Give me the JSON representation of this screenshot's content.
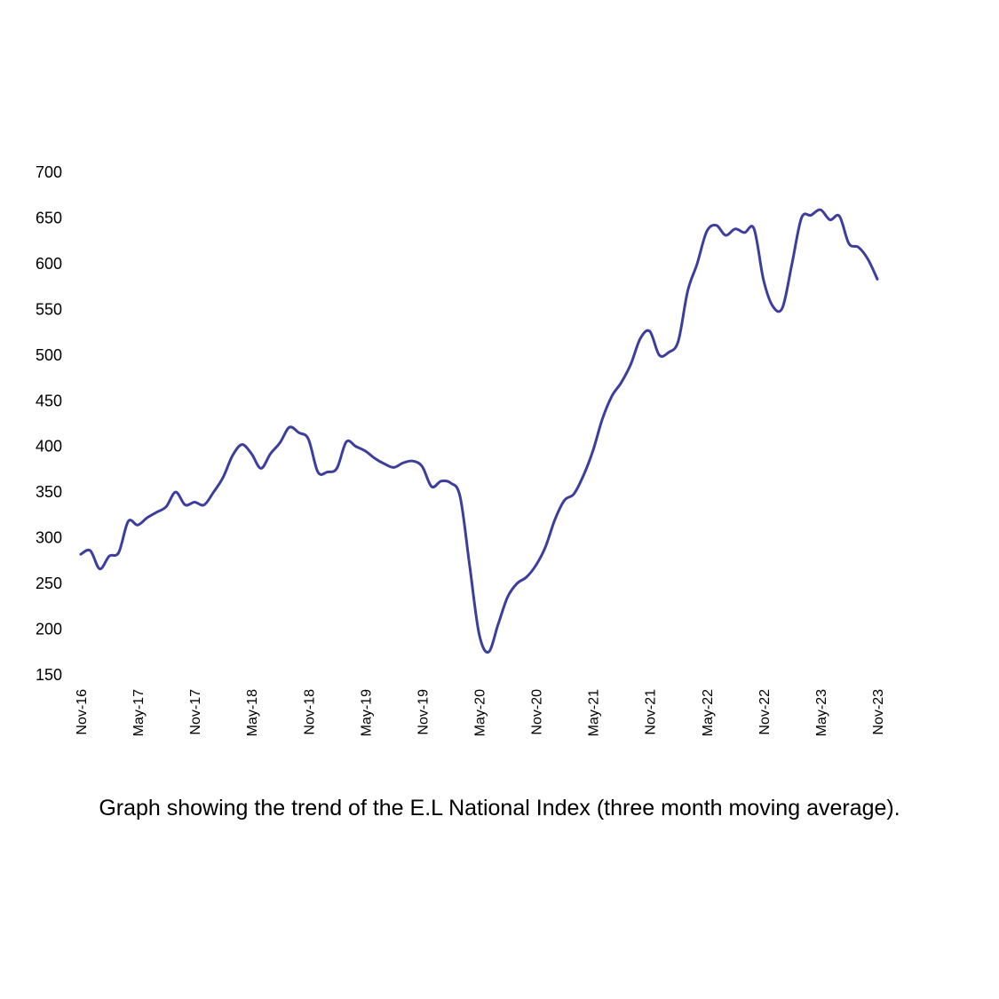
{
  "caption": "Graph showing the trend of the E.L National Index (three month moving average).",
  "colors": {
    "line": "#3d3d9e",
    "text": "#000000",
    "background": "#ffffff"
  },
  "chart_data": {
    "type": "line",
    "title": "",
    "xlabel": "",
    "ylabel": "",
    "ylim": [
      150,
      700
    ],
    "yticks": [
      150,
      200,
      250,
      300,
      350,
      400,
      450,
      500,
      550,
      600,
      650,
      700
    ],
    "xticks": [
      "Nov-16",
      "May-17",
      "Nov-17",
      "May-18",
      "Nov-18",
      "May-19",
      "Nov-19",
      "May-20",
      "Nov-20",
      "May-21",
      "Nov-21",
      "May-22",
      "Nov-22",
      "May-23",
      "Nov-23"
    ],
    "grid": false,
    "legend": "none",
    "series": [
      {
        "values": [
          282,
          286,
          266,
          280,
          284,
          318,
          314,
          322,
          328,
          334,
          350,
          336,
          339,
          336,
          350,
          366,
          390,
          402,
          392,
          376,
          392,
          404,
          421,
          415,
          408,
          372,
          372,
          376,
          405,
          400,
          395,
          387,
          381,
          377,
          382,
          384,
          378,
          356,
          362,
          360,
          345,
          270,
          195,
          175,
          205,
          235,
          250,
          257,
          270,
          290,
          320,
          341,
          348,
          368,
          395,
          430,
          455,
          470,
          490,
          518,
          526,
          500,
          503,
          515,
          570,
          600,
          635,
          642,
          631,
          638,
          634,
          638,
          582,
          553,
          552,
          600,
          650,
          653,
          659,
          648,
          652,
          622,
          618,
          605,
          583
        ]
      }
    ]
  }
}
